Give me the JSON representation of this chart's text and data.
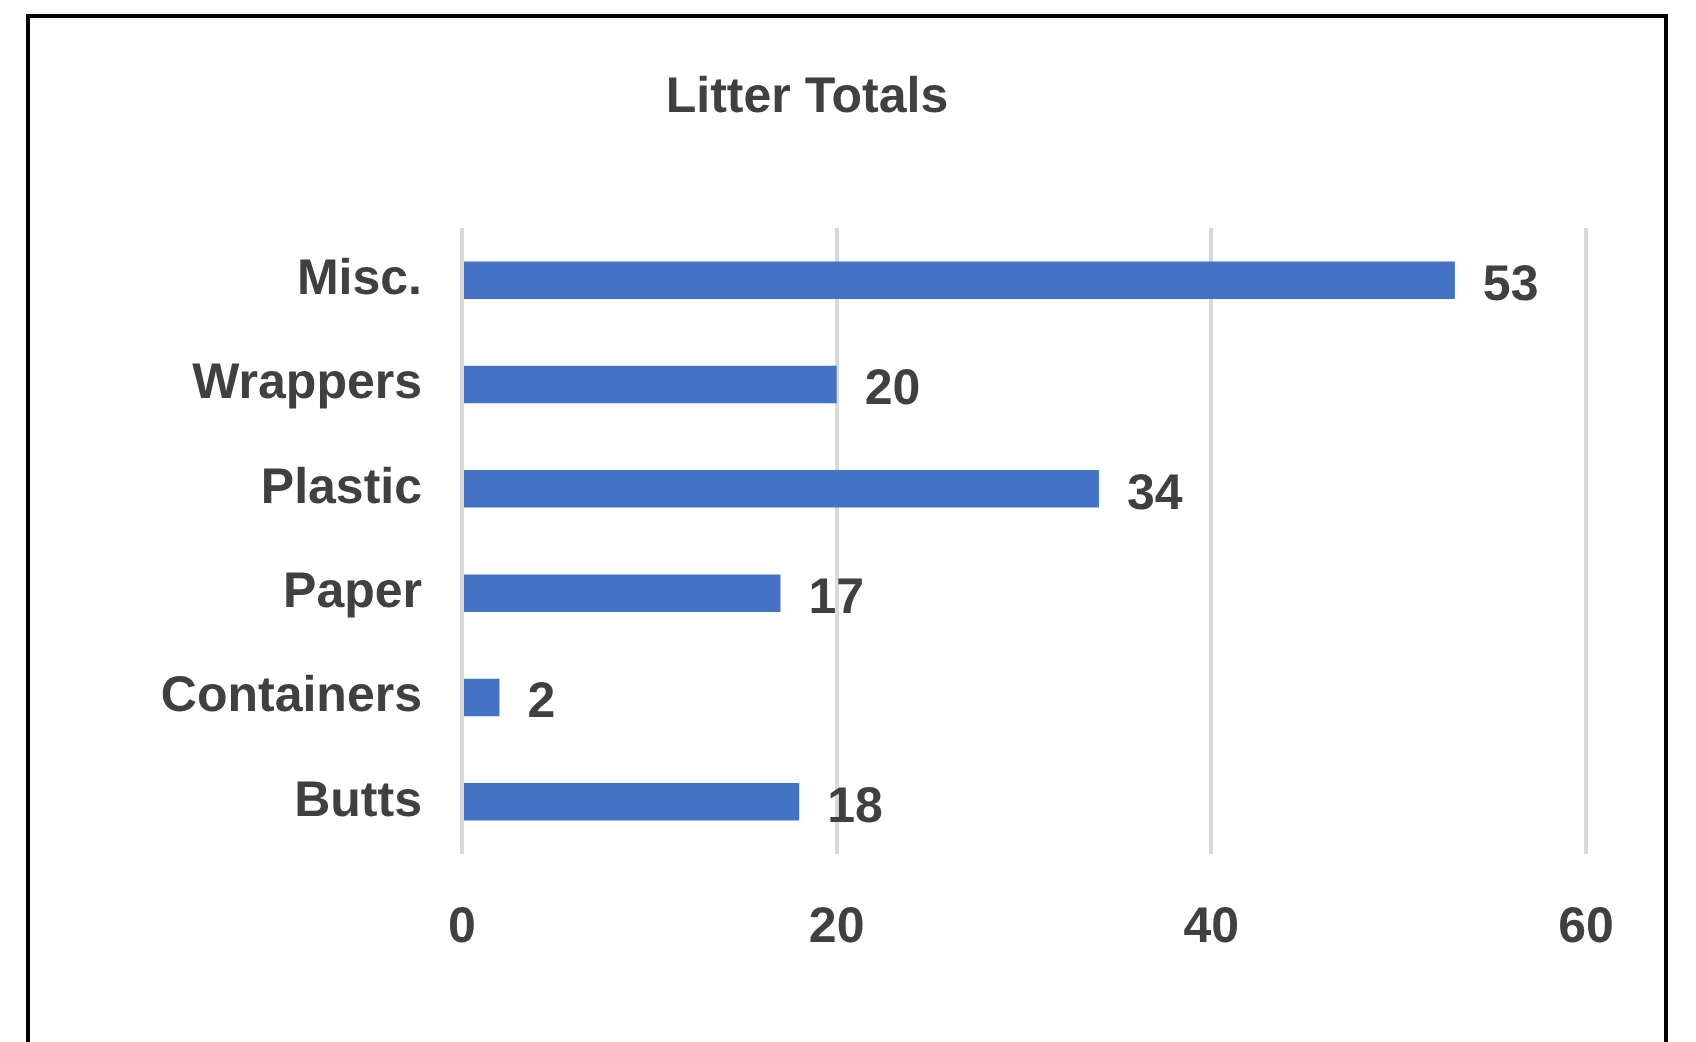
{
  "chart_data": {
    "type": "bar",
    "orientation": "horizontal",
    "title": "Litter Totals",
    "categories": [
      "Misc.",
      "Wrappers",
      "Plastic",
      "Paper",
      "Containers",
      "Butts"
    ],
    "values": [
      53,
      20,
      34,
      17,
      2,
      18
    ],
    "color": "#4472c4",
    "xlim": [
      0,
      60
    ],
    "xticks": [
      0,
      20,
      40,
      60
    ],
    "grid": "x",
    "data_labels": true,
    "legend": false
  }
}
